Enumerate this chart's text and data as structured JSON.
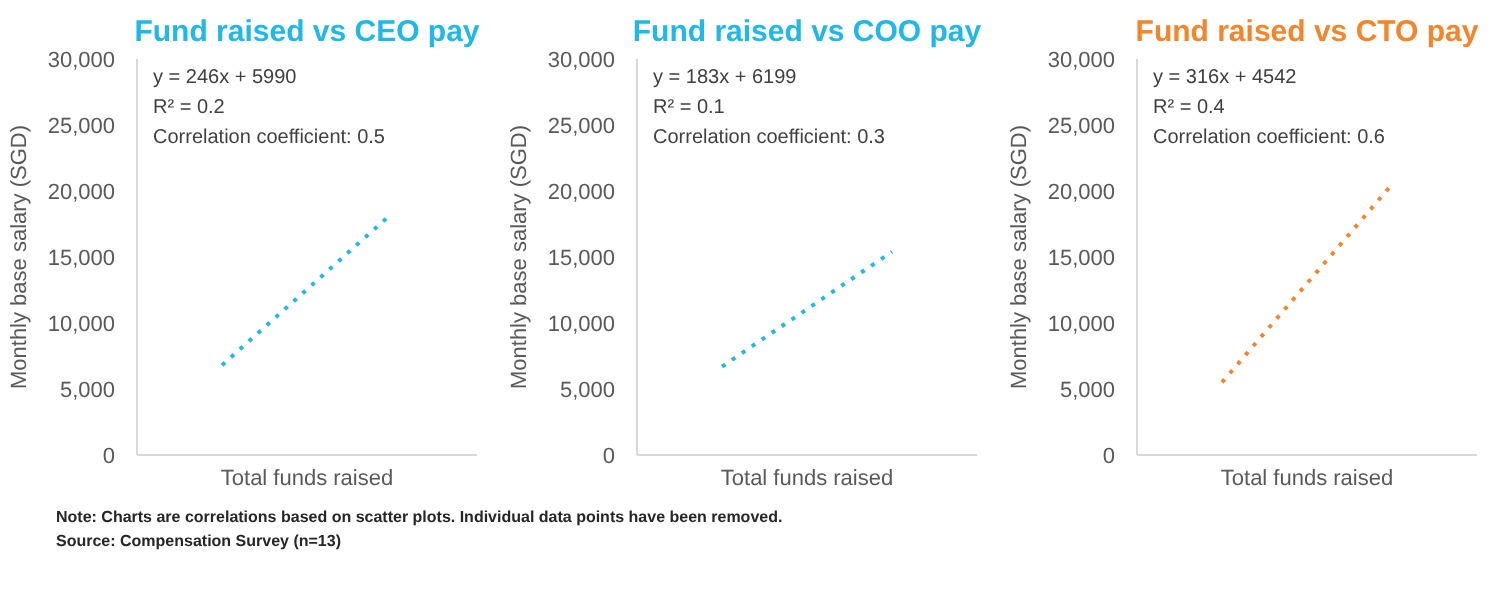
{
  "chart_data": [
    {
      "type": "line",
      "title": "Fund raised vs CEO pay",
      "xlabel": "Total funds raised",
      "ylabel": "Monthly base salary (SGD)",
      "categories": [
        null,
        null
      ],
      "series": [
        {
          "color": "#1fb8e8",
          "values": [
            6800,
            18300
          ]
        }
      ],
      "line_style": "dotted",
      "marker": "none",
      "grid": false,
      "ylim": [
        0,
        30000
      ],
      "yticks": [
        {
          "value": 0,
          "label": "0"
        },
        {
          "value": 5000,
          "label": "5,000"
        },
        {
          "value": 10000,
          "label": "10,000"
        },
        {
          "value": 15000,
          "label": "15,000"
        },
        {
          "value": 20000,
          "label": "20,000"
        },
        {
          "value": 25000,
          "label": "25,000"
        },
        {
          "value": 30000,
          "label": "30,000"
        }
      ],
      "annotations": [
        "y = 246x + 5990",
        "R² = 0.2",
        "Correlation coefficient: 0.5",
        "Note: Charts are correlations based on scatter plots. Individual data points have been removed.",
        "Source: Compensation Survey (n=13)"
      ]
    },
    {
      "type": "line",
      "title": "Fund raised vs COO pay",
      "xlabel": "Total funds raised",
      "ylabel": "Monthly base salary (SGD)",
      "categories": [
        null,
        null
      ],
      "series": [
        {
          "color": "#1fb8e8",
          "values": [
            6700,
            15400
          ]
        }
      ],
      "line_style": "dotted",
      "marker": "none",
      "grid": false,
      "ylim": [
        0,
        30000
      ],
      "yticks": [
        {
          "value": 0,
          "label": "0"
        },
        {
          "value": 5000,
          "label": "5,000"
        },
        {
          "value": 10000,
          "label": "10,000"
        },
        {
          "value": 15000,
          "label": "15,000"
        },
        {
          "value": 20000,
          "label": "20,000"
        },
        {
          "value": 25000,
          "label": "25,000"
        },
        {
          "value": 30000,
          "label": "30,000"
        }
      ],
      "annotations": [
        "y = 183x + 6199",
        "R² = 0.1",
        "Correlation coefficient: 0.3"
      ]
    },
    {
      "type": "line",
      "title": "Fund raised vs CTO pay",
      "xlabel": "Total funds raised",
      "ylabel": "Monthly base salary (SGD)",
      "categories": [
        null,
        null
      ],
      "series": [
        {
          "color": "#f5852a",
          "values": [
            5500,
            20500
          ]
        }
      ],
      "line_style": "dotted",
      "marker": "none",
      "grid": false,
      "ylim": [
        0,
        30000
      ],
      "yticks": [
        {
          "value": 0,
          "label": "0"
        },
        {
          "value": 5000,
          "label": "5,000"
        },
        {
          "value": 10000,
          "label": "10,000"
        },
        {
          "value": 15000,
          "label": "15,000"
        },
        {
          "value": 20000,
          "label": "20,000"
        },
        {
          "value": 25000,
          "label": "25,000"
        },
        {
          "value": 30000,
          "label": "30,000"
        }
      ],
      "annotations": [
        "y = 316x + 4542",
        "R² = 0.4",
        "Correlation coefficient: 0.6"
      ]
    }
  ]
}
